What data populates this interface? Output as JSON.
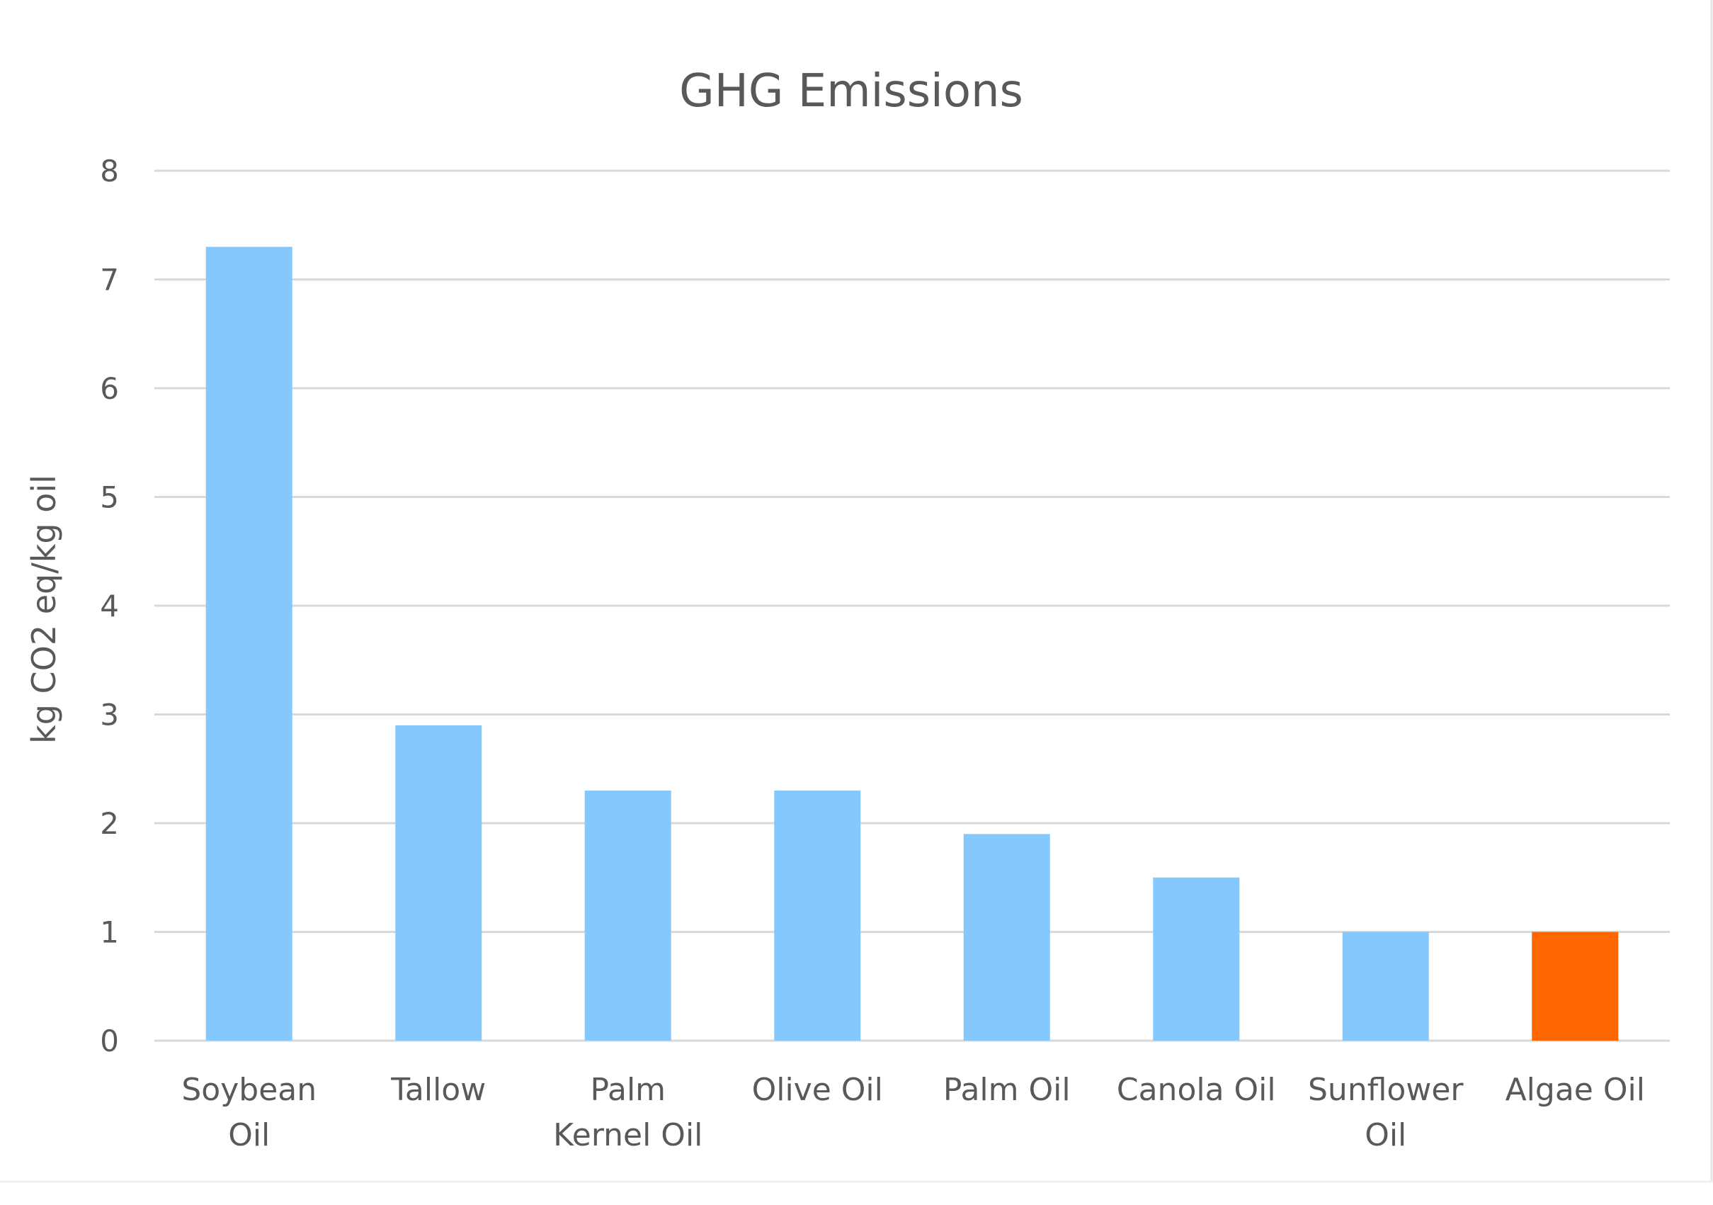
{
  "chart_data": {
    "type": "bar",
    "title": "GHG Emissions",
    "xlabel": "",
    "ylabel": "kg CO2 eq/kg oil",
    "categories": [
      [
        "Soybean",
        "Oil"
      ],
      [
        "Tallow"
      ],
      [
        "Palm",
        "Kernel Oil"
      ],
      [
        "Olive Oil"
      ],
      [
        "Palm Oil"
      ],
      [
        "Canola Oil"
      ],
      [
        "Sunflower",
        "Oil"
      ],
      [
        "Algae Oil"
      ]
    ],
    "values": [
      7.3,
      2.9,
      2.3,
      2.3,
      1.9,
      1.5,
      1.0,
      1.0
    ],
    "bar_colors": [
      "#85c8fd",
      "#85c8fd",
      "#85c8fd",
      "#85c8fd",
      "#85c8fd",
      "#85c8fd",
      "#85c8fd",
      "#ff6600"
    ],
    "ylim": [
      0,
      8
    ],
    "yticks": [
      "0",
      "1",
      "2",
      "3",
      "4",
      "5",
      "6",
      "7",
      "8"
    ],
    "grid": true,
    "legend": "none"
  }
}
